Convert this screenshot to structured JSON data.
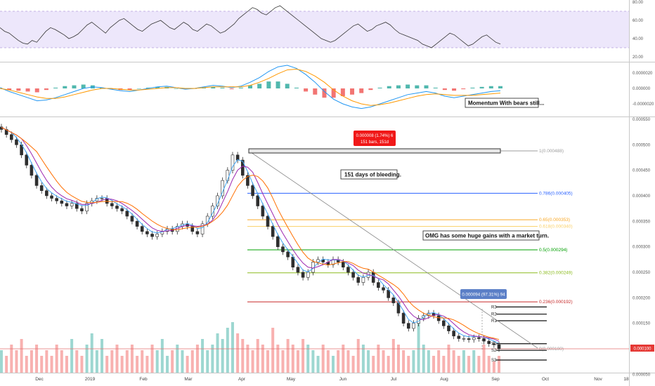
{
  "chart_data": [
    {
      "type": "line",
      "panel": "rsi",
      "y_ticks": [
        "80.00",
        "60.00",
        "40.00",
        "20.00"
      ],
      "ylim": [
        20,
        80
      ],
      "band": [
        30,
        70
      ],
      "values": [
        52,
        48,
        46,
        42,
        38,
        35,
        34,
        38,
        36,
        42,
        48,
        52,
        50,
        47,
        44,
        40,
        42,
        45,
        50,
        55,
        58,
        54,
        50,
        46,
        52,
        56,
        60,
        62,
        58,
        54,
        50,
        48,
        52,
        56,
        58,
        60,
        56,
        52,
        50,
        54,
        58,
        55,
        50,
        48,
        52,
        56,
        54,
        50,
        46,
        48,
        52,
        56,
        62,
        66,
        70,
        74,
        72,
        68,
        66,
        70,
        74,
        76,
        72,
        68,
        64,
        60,
        56,
        52,
        48,
        44,
        40,
        38,
        36,
        38,
        42,
        46,
        50,
        54,
        56,
        52,
        48,
        50,
        54,
        56,
        58,
        55,
        50,
        46,
        44,
        42,
        40,
        38,
        34,
        32,
        30,
        34,
        38,
        42,
        46,
        44,
        40,
        36,
        32,
        34,
        38,
        42,
        44,
        40,
        36,
        34
      ]
    },
    {
      "type": "line",
      "panel": "macd",
      "y_ticks": [
        "0.0000020",
        "0.000000",
        "-0.0000020"
      ],
      "ylim": [
        -3e-06,
        3e-06
      ],
      "series": [
        {
          "values": [
            1e-07,
            -4e-07,
            -8e-07,
            -1.2e-06,
            -1.6e-06,
            -1.5e-06,
            -1.2e-06,
            -8e-07,
            -4e-07,
            0.0,
            2e-07,
            1e-07,
            -1e-07,
            -3e-07,
            -4e-07,
            -2e-07,
            0.0,
            2e-07,
            3e-07,
            1e-07,
            -1e-07,
            0.0,
            2e-07,
            4e-07,
            3e-07,
            1e-07,
            3e-07,
            8e-07,
            1.4e-06,
            2.2e-06,
            2.8e-06,
            3e-06,
            2.6e-06,
            1.8e-06,
            8e-07,
            -4e-07,
            -1.4e-06,
            -2e-06,
            -2.4e-06,
            -2.6e-06,
            -2.4e-06,
            -2e-06,
            -1.6e-06,
            -1.2e-06,
            -8e-07,
            -6e-07,
            -4e-07,
            -6e-07,
            -1e-06,
            -1.2e-06,
            -1e-06,
            -8e-07,
            -6e-07,
            -4e-07,
            -3e-07
          ]
        },
        {
          "values": [
            0.0,
            -2e-07,
            -5e-07,
            -8e-07,
            -1.1e-06,
            -1.3e-06,
            -1.3e-06,
            -1.1e-06,
            -8e-07,
            -5e-07,
            -2e-07,
            0.0,
            0.0,
            -1e-07,
            -2e-07,
            -2e-07,
            -1e-07,
            0.0,
            1e-07,
            1e-07,
            0.0,
            0.0,
            1e-07,
            2e-07,
            2e-07,
            2e-07,
            2e-07,
            4e-07,
            8e-07,
            1.3e-06,
            1.9e-06,
            2.4e-06,
            2.5e-06,
            2.2e-06,
            1.6e-06,
            8e-07,
            -2e-07,
            -1e-06,
            -1.6e-06,
            -2e-06,
            -2.2e-06,
            -2.1e-06,
            -1.9e-06,
            -1.6e-06,
            -1.3e-06,
            -1e-06,
            -8e-07,
            -7e-07,
            -8e-07,
            -9e-07,
            -9e-07,
            -9e-07,
            -8e-07,
            -7e-07,
            -6e-07
          ]
        }
      ]
    },
    {
      "type": "candlestick",
      "panel": "price",
      "y_ticks": [
        "0.000550",
        "0.000500",
        "0.000450",
        "0.000400",
        "0.000350",
        "0.000300",
        "0.000250",
        "0.000200",
        "0.000150",
        "0.000100",
        "0.000050"
      ],
      "ylim": [
        2.5e-05,
        0.000555
      ],
      "x_ticks": [
        "Dec",
        "2019",
        "Feb",
        "Mar",
        "Apr",
        "May",
        "Jun",
        "Jul",
        "Aug",
        "Sep",
        "Oct",
        "Nov",
        "18"
      ],
      "close": [
        0.00053,
        0.00052,
        0.00051,
        0.0005,
        0.00048,
        0.00046,
        0.00044,
        0.00042,
        0.00041,
        0.0004,
        0.000395,
        0.00039,
        0.000385,
        0.00038,
        0.000385,
        0.000375,
        0.00037,
        0.000385,
        0.00039,
        0.000395,
        0.000395,
        0.000385,
        0.00038,
        0.000375,
        0.00037,
        0.00036,
        0.00035,
        0.00034,
        0.00033,
        0.000325,
        0.00032,
        0.000325,
        0.00033,
        0.000335,
        0.00033,
        0.00034,
        0.000345,
        0.00034,
        0.00033,
        0.000325,
        0.000345,
        0.00036,
        0.00038,
        0.0004,
        0.00043,
        0.00045,
        0.00048,
        0.00047,
        0.00044,
        0.00042,
        0.0004,
        0.00038,
        0.00036,
        0.00034,
        0.00032,
        0.0003,
        0.00029,
        0.00028,
        0.00026,
        0.00025,
        0.00024,
        0.00025,
        0.00027,
        0.000275,
        0.00027,
        0.000265,
        0.000275,
        0.00027,
        0.00026,
        0.00025,
        0.00024,
        0.00023,
        0.00024,
        0.00025,
        0.00023,
        0.00022,
        0.000215,
        0.0002,
        0.00019,
        0.00017,
        0.00015,
        0.00014,
        0.00015,
        0.00016,
        0.000165,
        0.00017,
        0.000165,
        0.000155,
        0.000145,
        0.000135,
        0.000125,
        0.00012,
        0.00012,
        0.000118,
        0.000122,
        0.00012,
        0.000115,
        0.00011,
        0.000108,
        0.0001
      ],
      "volume": [
        4,
        3,
        5,
        4,
        6,
        3,
        4,
        5,
        3,
        4,
        3,
        5,
        4,
        3,
        6,
        4,
        3,
        5,
        7,
        4,
        6,
        3,
        4,
        5,
        3,
        4,
        5,
        3,
        4,
        3,
        5,
        4,
        6,
        3,
        4,
        5,
        4,
        3,
        4,
        5,
        6,
        4,
        5,
        7,
        6,
        8,
        9,
        7,
        6,
        5,
        4,
        6,
        5,
        4,
        8,
        5,
        4,
        6,
        5,
        4,
        6,
        5,
        4,
        3,
        5,
        4,
        3,
        4,
        5,
        4,
        3,
        6,
        5,
        4,
        3,
        5,
        4,
        3,
        6,
        5,
        4,
        3,
        4,
        9,
        5,
        4,
        3,
        4,
        3,
        5,
        4,
        3,
        4,
        3,
        4,
        3,
        5,
        3,
        2,
        3
      ],
      "fib_levels": [
        {
          "label": "1(0.000488)",
          "value": 0.000488,
          "color": "#9e9e9e"
        },
        {
          "label": "0.786(0.000405)",
          "value": 0.000405,
          "color": "#2962ff"
        },
        {
          "label": "0.65(0.000353)",
          "value": 0.000353,
          "color": "#f9a825"
        },
        {
          "label": "0.618(0.000340)",
          "value": 0.00034,
          "color": "#f9d067"
        },
        {
          "label": "0.5(0.000294)",
          "value": 0.000294,
          "color": "#00a000"
        },
        {
          "label": "0.382(0.000249)",
          "value": 0.000249,
          "color": "#8bbb1e"
        },
        {
          "label": "0.236(0.000192)",
          "value": 0.000192,
          "color": "#c62828"
        },
        {
          "label": "0(0.000100)",
          "value": 0.0001,
          "color": "#9e9e9e"
        }
      ],
      "pivots": [
        {
          "label": "R3",
          "value": 0.000182
        },
        {
          "label": "R2",
          "value": 0.000168
        },
        {
          "label": "R1",
          "value": 0.000155
        },
        {
          "label": "S1",
          "value": 0.00011
        },
        {
          "label": "S2",
          "value": 9.7e-05
        },
        {
          "label": "S3",
          "value": 7.8e-05
        }
      ]
    }
  ],
  "annotations": {
    "measure_1": "0.000008 (1.74%) 6",
    "measure_2": "151 bars, 151d",
    "bleeding": "151 days of bleeding.",
    "omg_note": "OMG has some huge gains with a market turn.",
    "momentum_note": "Momentum With bears still...",
    "drop_label": "0.000094 (97.31%) 94",
    "price_tag": "0.000100"
  },
  "colors": {
    "rsi_band": "#ede7fb",
    "macd_line": "#2196f3",
    "signal_line": "#ff9800",
    "ma_fast": "#9c27b0",
    "ma_slow": "#ff6f00",
    "ma_short": "#42a5f5",
    "hist_up": "#26a69a",
    "hist_down": "#ef5350"
  }
}
